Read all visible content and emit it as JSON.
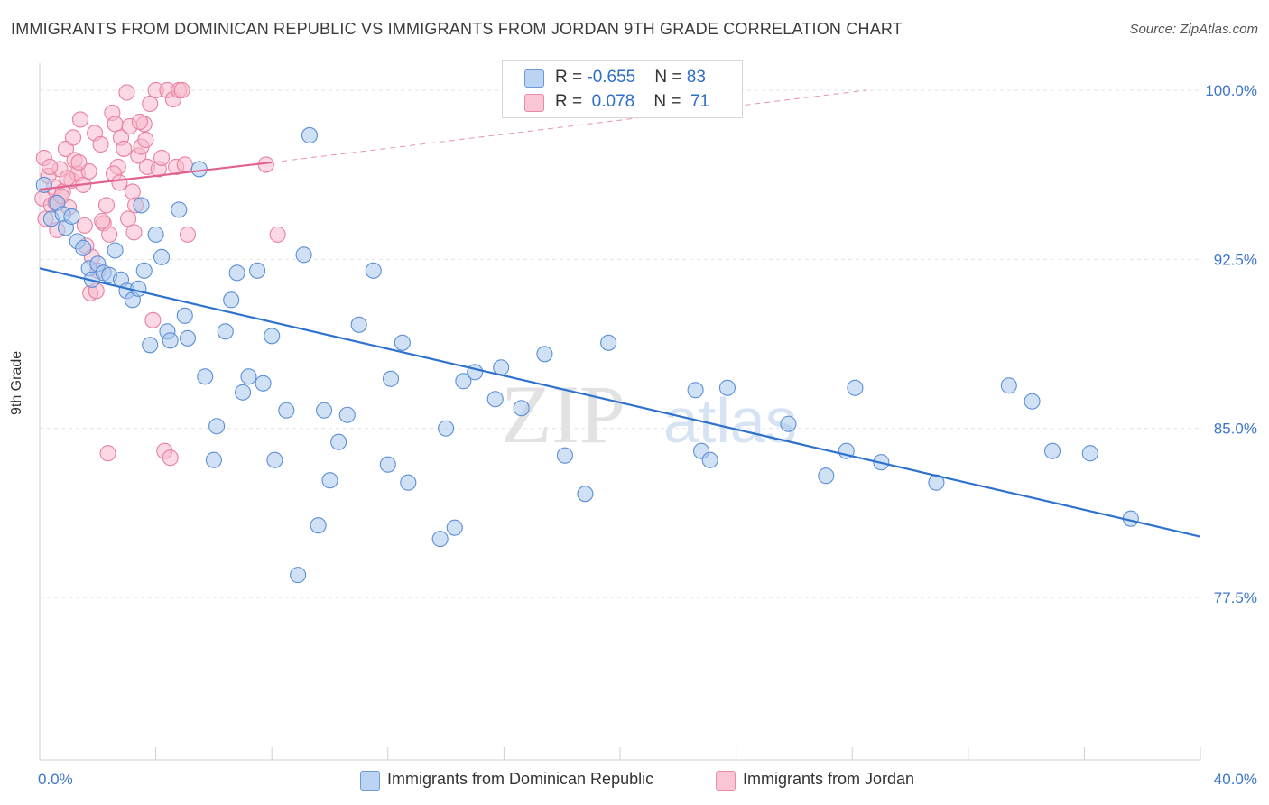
{
  "header": {
    "title": "IMMIGRANTS FROM DOMINICAN REPUBLIC VS IMMIGRANTS FROM JORDAN 9TH GRADE CORRELATION CHART",
    "source": "Source: ZipAtlas.com"
  },
  "watermark": {
    "zip": "ZIP",
    "atlas": "atlas"
  },
  "legend": {
    "rows": [
      {
        "r_label": "R = ",
        "r_value": "-0.655",
        "n_label": "N = ",
        "n_value": "83"
      },
      {
        "r_label": "R = ",
        "r_value": " 0.078",
        "n_label": "N = ",
        "n_value": " 71"
      }
    ]
  },
  "chart_data": {
    "type": "scatter",
    "title": "IMMIGRANTS FROM DOMINICAN REPUBLIC VS IMMIGRANTS FROM JORDAN 9TH GRADE CORRELATION CHART",
    "xlabel": "",
    "ylabel": "9th Grade",
    "xlim": [
      0,
      40
    ],
    "ylim": [
      70.3,
      101.2
    ],
    "x_tick_labels": [
      "0.0%",
      "40.0%"
    ],
    "y_ticks": [
      77.5,
      85.0,
      92.5,
      100.0
    ],
    "y_tick_labels": [
      "77.5%",
      "85.0%",
      "92.5%",
      "100.0%"
    ],
    "grid": true,
    "legend_placement": "top-center",
    "colors": {
      "dominican_fill": "#a9c8ef",
      "dominican_stroke": "#5b8fd6",
      "dominican_line": "#2e72cc",
      "jordan_fill": "#f7b8cc",
      "jordan_stroke": "#e8809f",
      "jordan_line": "#e0628d"
    },
    "series": [
      {
        "name": "Immigrants from Dominican Republic",
        "r": -0.655,
        "n": 83,
        "trend": {
          "x0": 0,
          "y0": 92.1,
          "x1": 40,
          "y1": 80.2
        },
        "points": [
          [
            0.15,
            95.8
          ],
          [
            0.4,
            94.3
          ],
          [
            0.6,
            95.0
          ],
          [
            0.8,
            94.5
          ],
          [
            0.9,
            93.9
          ],
          [
            1.1,
            94.4
          ],
          [
            1.3,
            93.3
          ],
          [
            1.5,
            93.0
          ],
          [
            1.7,
            92.1
          ],
          [
            1.8,
            91.6
          ],
          [
            2.0,
            92.3
          ],
          [
            2.2,
            91.9
          ],
          [
            2.4,
            91.8
          ],
          [
            2.6,
            92.9
          ],
          [
            2.8,
            91.6
          ],
          [
            3.0,
            91.1
          ],
          [
            3.2,
            90.7
          ],
          [
            3.4,
            91.2
          ],
          [
            3.5,
            94.9
          ],
          [
            3.6,
            92.0
          ],
          [
            3.8,
            88.7
          ],
          [
            4.0,
            93.6
          ],
          [
            4.2,
            92.6
          ],
          [
            4.4,
            89.3
          ],
          [
            4.5,
            88.9
          ],
          [
            4.8,
            94.7
          ],
          [
            5.0,
            90.0
          ],
          [
            5.1,
            89.0
          ],
          [
            5.5,
            96.5
          ],
          [
            5.7,
            87.3
          ],
          [
            6.0,
            83.6
          ],
          [
            6.1,
            85.1
          ],
          [
            6.4,
            89.3
          ],
          [
            6.6,
            90.7
          ],
          [
            6.8,
            91.9
          ],
          [
            7.0,
            86.6
          ],
          [
            7.2,
            87.3
          ],
          [
            7.5,
            92.0
          ],
          [
            7.7,
            87.0
          ],
          [
            8.0,
            89.1
          ],
          [
            8.1,
            83.6
          ],
          [
            8.5,
            85.8
          ],
          [
            8.9,
            78.5
          ],
          [
            9.1,
            92.7
          ],
          [
            9.3,
            98.0
          ],
          [
            9.6,
            80.7
          ],
          [
            9.8,
            85.8
          ],
          [
            10.0,
            82.7
          ],
          [
            10.3,
            84.4
          ],
          [
            10.6,
            85.6
          ],
          [
            11.0,
            89.6
          ],
          [
            11.5,
            92.0
          ],
          [
            12.0,
            83.4
          ],
          [
            12.1,
            87.2
          ],
          [
            12.5,
            88.8
          ],
          [
            12.7,
            82.6
          ],
          [
            13.8,
            80.1
          ],
          [
            14.0,
            85.0
          ],
          [
            14.3,
            80.6
          ],
          [
            14.6,
            87.1
          ],
          [
            15.0,
            87.5
          ],
          [
            15.7,
            86.3
          ],
          [
            15.9,
            87.7
          ],
          [
            16.6,
            85.9
          ],
          [
            17.4,
            88.3
          ],
          [
            18.1,
            83.8
          ],
          [
            18.8,
            82.1
          ],
          [
            19.6,
            88.8
          ],
          [
            22.6,
            86.7
          ],
          [
            22.8,
            84.0
          ],
          [
            23.1,
            83.6
          ],
          [
            23.7,
            86.8
          ],
          [
            25.8,
            85.2
          ],
          [
            27.1,
            82.9
          ],
          [
            27.8,
            84.0
          ],
          [
            28.1,
            86.8
          ],
          [
            29.0,
            83.5
          ],
          [
            30.9,
            82.6
          ],
          [
            33.4,
            86.9
          ],
          [
            34.2,
            86.2
          ],
          [
            34.9,
            84.0
          ],
          [
            36.2,
            83.9
          ],
          [
            37.6,
            81.0
          ]
        ]
      },
      {
        "name": "Immigrants from Jordan",
        "r": 0.078,
        "n": 71,
        "trend": {
          "x0": 0,
          "y0": 95.6,
          "x1": 8,
          "y1": 96.8,
          "dash_x1": 28.5,
          "dash_y1": 100.0
        },
        "points": [
          [
            0.1,
            95.2
          ],
          [
            0.2,
            94.3
          ],
          [
            0.3,
            96.2
          ],
          [
            0.4,
            94.9
          ],
          [
            0.5,
            95.7
          ],
          [
            0.6,
            93.8
          ],
          [
            0.7,
            96.5
          ],
          [
            0.8,
            95.5
          ],
          [
            0.9,
            97.4
          ],
          [
            1.0,
            94.8
          ],
          [
            1.1,
            96.0
          ],
          [
            1.2,
            96.9
          ],
          [
            1.3,
            96.3
          ],
          [
            1.4,
            98.7
          ],
          [
            1.5,
            95.8
          ],
          [
            1.6,
            93.1
          ],
          [
            1.7,
            96.4
          ],
          [
            1.8,
            92.6
          ],
          [
            1.9,
            98.1
          ],
          [
            2.0,
            92.0
          ],
          [
            2.1,
            97.6
          ],
          [
            2.2,
            94.1
          ],
          [
            2.3,
            94.9
          ],
          [
            2.4,
            93.6
          ],
          [
            2.5,
            99.0
          ],
          [
            2.6,
            98.5
          ],
          [
            2.7,
            96.6
          ],
          [
            2.8,
            97.9
          ],
          [
            2.9,
            97.4
          ],
          [
            3.0,
            99.9
          ],
          [
            3.1,
            98.4
          ],
          [
            3.2,
            95.5
          ],
          [
            3.3,
            94.9
          ],
          [
            3.4,
            97.1
          ],
          [
            3.5,
            97.5
          ],
          [
            3.6,
            98.5
          ],
          [
            3.7,
            96.6
          ],
          [
            3.8,
            99.4
          ],
          [
            3.9,
            89.8
          ],
          [
            4.0,
            100.0
          ],
          [
            4.1,
            96.5
          ],
          [
            4.2,
            97.0
          ],
          [
            4.3,
            84.0
          ],
          [
            4.4,
            100.0
          ],
          [
            4.5,
            83.7
          ],
          [
            4.6,
            99.6
          ],
          [
            4.7,
            96.6
          ],
          [
            4.8,
            100.0
          ],
          [
            4.9,
            100.0
          ],
          [
            5.0,
            96.7
          ],
          [
            5.1,
            93.6
          ],
          [
            0.15,
            97.0
          ],
          [
            0.35,
            96.6
          ],
          [
            0.55,
            95.0
          ],
          [
            0.75,
            95.3
          ],
          [
            0.95,
            96.1
          ],
          [
            1.15,
            97.9
          ],
          [
            1.35,
            96.8
          ],
          [
            1.55,
            94.0
          ],
          [
            1.75,
            91.0
          ],
          [
            1.95,
            91.1
          ],
          [
            2.15,
            94.2
          ],
          [
            2.35,
            83.9
          ],
          [
            2.55,
            96.3
          ],
          [
            2.75,
            95.9
          ],
          [
            3.05,
            94.3
          ],
          [
            3.25,
            93.7
          ],
          [
            3.45,
            98.6
          ],
          [
            3.65,
            97.8
          ],
          [
            7.8,
            96.7
          ],
          [
            8.2,
            93.6
          ]
        ]
      }
    ]
  }
}
